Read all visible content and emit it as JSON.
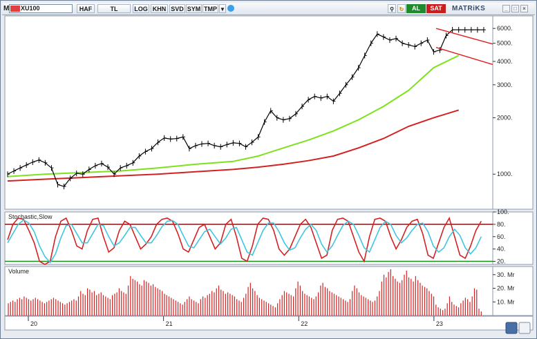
{
  "toolbar": {
    "symbol_prefix": "M",
    "symbol": "XU100",
    "buttons": [
      "HAF",
      "TL",
      "LOG",
      "KHN",
      "SVD",
      "SYM",
      "TMP"
    ],
    "al_label": "AL",
    "sat_label": "SAT",
    "brand": "MATRiKS"
  },
  "colors": {
    "price": "#000000",
    "ma_slow": "#d42020",
    "ma_fast": "#7de21a",
    "channel": "#e02020",
    "stoch_k": "#d42020",
    "stoch_d": "#3ec6e0",
    "stoch_upper": "#8b1010",
    "stoch_lower": "#1a8a1a",
    "volume": "#d42020"
  },
  "chart_data": [
    {
      "type": "line",
      "scale": "log",
      "ylim": [
        650,
        7000
      ],
      "y_ticks": [
        6000,
        5000,
        4000,
        3000,
        2000,
        1000
      ],
      "y_tick_labels": [
        "6000.",
        "5000.",
        "4000.",
        "3000.",
        "2000.",
        "1000."
      ],
      "x_ticks": [
        0.5,
        1.5,
        2.5,
        3.5
      ],
      "x_tick_labels": [
        "20",
        "21",
        "22",
        "23"
      ],
      "xlim": [
        0.5,
        4.0
      ],
      "series": [
        {
          "x": [
            0.0,
            0.05,
            0.1,
            0.15,
            0.2,
            0.25,
            0.3,
            0.35,
            0.4,
            0.45,
            0.5,
            0.55,
            0.6,
            0.65,
            0.7,
            0.75,
            0.8,
            0.85,
            0.9,
            0.95,
            1.0,
            1.05,
            1.1,
            1.15,
            1.2,
            1.25,
            1.3,
            1.35,
            1.4,
            1.45,
            1.5,
            1.55,
            1.6,
            1.65,
            1.7,
            1.75,
            1.8,
            1.85,
            1.9,
            1.95,
            2.0,
            2.05,
            2.1,
            2.15,
            2.2,
            2.25,
            2.3,
            2.35,
            2.4,
            2.45,
            2.5,
            2.55,
            2.6,
            2.65,
            2.7,
            2.75,
            2.8,
            2.85,
            2.9,
            2.95,
            3.0,
            3.05,
            3.1,
            3.15,
            3.2,
            3.25,
            3.3,
            3.35,
            3.4,
            3.45,
            3.5,
            3.55,
            3.6,
            3.65,
            3.7,
            3.75,
            3.8
          ],
          "values": [
            1000,
            1040,
            1080,
            1120,
            1160,
            1190,
            1150,
            1080,
            880,
            860,
            950,
            1010,
            1000,
            1060,
            1110,
            1140,
            1090,
            1000,
            1080,
            1110,
            1150,
            1250,
            1320,
            1370,
            1480,
            1560,
            1540,
            1550,
            1580,
            1370,
            1420,
            1450,
            1460,
            1420,
            1400,
            1440,
            1470,
            1460,
            1400,
            1480,
            1580,
            1900,
            2180,
            2000,
            1950,
            1980,
            2100,
            2300,
            2500,
            2600,
            2550,
            2600,
            2450,
            2700,
            3000,
            3300,
            3700,
            4300,
            5000,
            5600,
            5400,
            5200,
            5300,
            5000,
            4900,
            4800,
            5000,
            5200,
            4500,
            4600,
            5500,
            5900,
            5900,
            5900,
            5900,
            5900,
            5900
          ]
        },
        {
          "x": [
            0.0,
            0.3,
            0.6,
            0.9,
            1.2,
            1.5,
            1.8,
            2.0,
            2.2,
            2.4,
            2.6,
            2.8,
            3.0,
            3.2,
            3.4,
            3.6
          ],
          "values": [
            970,
            1000,
            1020,
            1040,
            1080,
            1130,
            1170,
            1250,
            1380,
            1520,
            1700,
            1950,
            2300,
            2800,
            3700,
            4300
          ]
        },
        {
          "x": [
            0.0,
            0.3,
            0.6,
            0.9,
            1.2,
            1.5,
            1.8,
            2.0,
            2.2,
            2.4,
            2.6,
            2.8,
            3.0,
            3.2,
            3.4,
            3.6
          ],
          "values": [
            920,
            940,
            960,
            980,
            1000,
            1030,
            1060,
            1090,
            1130,
            1180,
            1250,
            1380,
            1550,
            1800,
            2000,
            2200
          ]
        }
      ]
    },
    {
      "type": "line",
      "title": "Stochastic,Slow",
      "ylim": [
        15,
        100
      ],
      "y_ticks": [
        100,
        80,
        60,
        40,
        20
      ],
      "y_tick_labels": [
        "100.",
        "80.",
        "60.",
        "40.",
        "20."
      ],
      "levels": [
        80,
        20
      ],
      "series": [
        {
          "values": [
            55,
            80,
            90,
            88,
            70,
            50,
            20,
            15,
            20,
            60,
            85,
            90,
            70,
            45,
            40,
            70,
            88,
            90,
            60,
            35,
            42,
            70,
            85,
            80,
            60,
            40,
            48,
            60,
            80,
            88,
            90,
            85,
            65,
            40,
            35,
            55,
            75,
            80,
            60,
            40,
            50,
            80,
            88,
            60,
            25,
            20,
            45,
            80,
            90,
            88,
            70,
            40,
            30,
            40,
            60,
            80,
            88,
            75,
            50,
            25,
            30,
            70,
            88,
            90,
            85,
            60,
            35,
            20,
            60,
            88,
            90,
            85,
            60,
            40,
            55,
            75,
            85,
            88,
            65,
            30,
            25,
            50,
            75,
            90,
            60,
            30,
            25,
            45,
            70,
            85
          ]
        },
        {
          "values": [
            50,
            65,
            80,
            87,
            82,
            68,
            45,
            28,
            18,
            32,
            58,
            78,
            80,
            65,
            50,
            50,
            65,
            80,
            78,
            60,
            45,
            50,
            62,
            75,
            75,
            62,
            50,
            50,
            62,
            76,
            85,
            86,
            80,
            62,
            45,
            42,
            55,
            68,
            72,
            60,
            48,
            58,
            72,
            75,
            55,
            35,
            30,
            50,
            70,
            82,
            82,
            68,
            50,
            38,
            42,
            58,
            72,
            80,
            70,
            48,
            35,
            45,
            62,
            78,
            85,
            80,
            62,
            42,
            35,
            55,
            75,
            85,
            80,
            62,
            50,
            58,
            70,
            80,
            82,
            68,
            45,
            35,
            42,
            60,
            72,
            62,
            42,
            32,
            42,
            60
          ]
        }
      ]
    },
    {
      "type": "bar",
      "title": "Volume",
      "ylim": [
        0,
        36
      ],
      "y_ticks": [
        30,
        20,
        10
      ],
      "y_tick_labels": [
        "30. Mr",
        "20. Mr",
        "10. Mr"
      ],
      "values": [
        9,
        10,
        11,
        10,
        12,
        13,
        12,
        14,
        13,
        12,
        11,
        12,
        13,
        12,
        11,
        10,
        9,
        10,
        11,
        12,
        13,
        12,
        11,
        10,
        9,
        8,
        9,
        10,
        11,
        12,
        11,
        14,
        18,
        16,
        15,
        20,
        19,
        17,
        18,
        15,
        16,
        17,
        15,
        14,
        13,
        12,
        15,
        16,
        17,
        20,
        18,
        17,
        16,
        22,
        29,
        27,
        26,
        25,
        23,
        22,
        26,
        25,
        24,
        22,
        23,
        21,
        20,
        19,
        18,
        16,
        15,
        14,
        13,
        12,
        11,
        10,
        9,
        8,
        10,
        12,
        14,
        12,
        11,
        10,
        9,
        12,
        14,
        13,
        15,
        16,
        18,
        17,
        20,
        22,
        19,
        18,
        16,
        17,
        16,
        15,
        14,
        12,
        11,
        10,
        13,
        16,
        21,
        24,
        20,
        18,
        15,
        13,
        12,
        11,
        10,
        9,
        8,
        7,
        6,
        9,
        12,
        15,
        18,
        17,
        16,
        15,
        14,
        20,
        25,
        22,
        18,
        16,
        15,
        14,
        13,
        12,
        14,
        17,
        22,
        24,
        21,
        20,
        18,
        17,
        16,
        15,
        14,
        13,
        12,
        11,
        10,
        12,
        18,
        22,
        20,
        17,
        15,
        14,
        13,
        12,
        11,
        10,
        11,
        14,
        18,
        25,
        30,
        28,
        32,
        34,
        29,
        27,
        25,
        24,
        26,
        30,
        33,
        28,
        27,
        25,
        29,
        26,
        24,
        22,
        21,
        20,
        18,
        16,
        14,
        8,
        6,
        5,
        4,
        5,
        9,
        14,
        10,
        8,
        7,
        6,
        9,
        11,
        13,
        12,
        10,
        14,
        20,
        19,
        5,
        3
      ]
    }
  ]
}
